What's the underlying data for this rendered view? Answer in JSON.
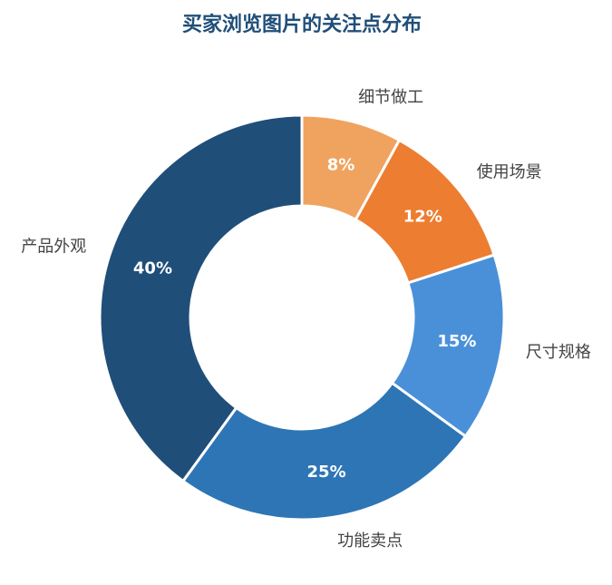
{
  "chart_data": {
    "type": "pie",
    "donut": true,
    "title": "买家浏览图片的关注点分布",
    "categories": [
      "细节做工",
      "使用场景",
      "尺寸规格",
      "功能卖点",
      "产品外观"
    ],
    "values": [
      8,
      12,
      15,
      25,
      40
    ],
    "value_labels": [
      "8%",
      "12%",
      "15%",
      "25%",
      "40%"
    ],
    "colors": [
      "#f0a35e",
      "#ed7d31",
      "#4a90d9",
      "#2e75b6",
      "#1f4e79"
    ]
  }
}
